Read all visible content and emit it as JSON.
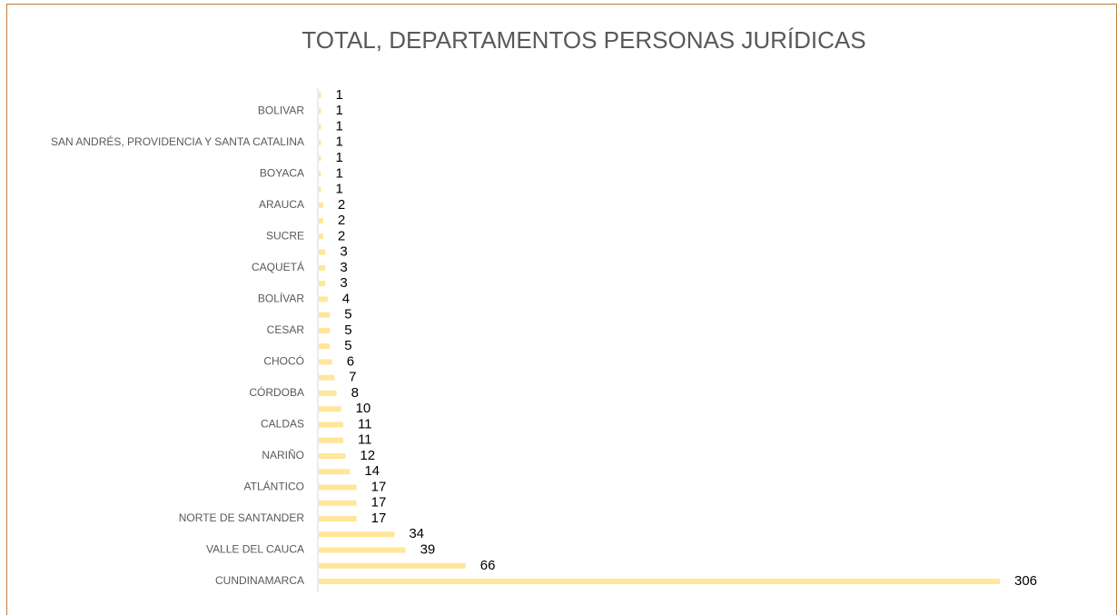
{
  "chart_data": {
    "type": "barh",
    "title": "TOTAL, DEPARTAMENTOS PERSONAS JURÍDICAS",
    "categories": [
      null,
      "BOLIVAR",
      null,
      "SAN ANDRÉS, PROVIDENCIA Y SANTA CATALINA",
      null,
      "BOYACA",
      null,
      "ARAUCA",
      null,
      "SUCRE",
      null,
      "CAQUETÁ",
      null,
      "BOLÍVAR",
      null,
      "CESAR",
      null,
      "CHOCÓ",
      null,
      "CÓRDOBA",
      null,
      "CALDAS",
      null,
      "NARIÑO",
      null,
      "ATLÁNTICO",
      null,
      "NORTE DE SANTANDER",
      null,
      "VALLE DEL CAUCA",
      null,
      "CUNDINAMARCA"
    ],
    "values": [
      1,
      1,
      1,
      1,
      1,
      1,
      1,
      2,
      2,
      2,
      3,
      3,
      3,
      4,
      5,
      5,
      5,
      6,
      7,
      8,
      10,
      11,
      11,
      12,
      14,
      17,
      17,
      17,
      34,
      39,
      66,
      306
    ],
    "color": "#ffe699"
  }
}
